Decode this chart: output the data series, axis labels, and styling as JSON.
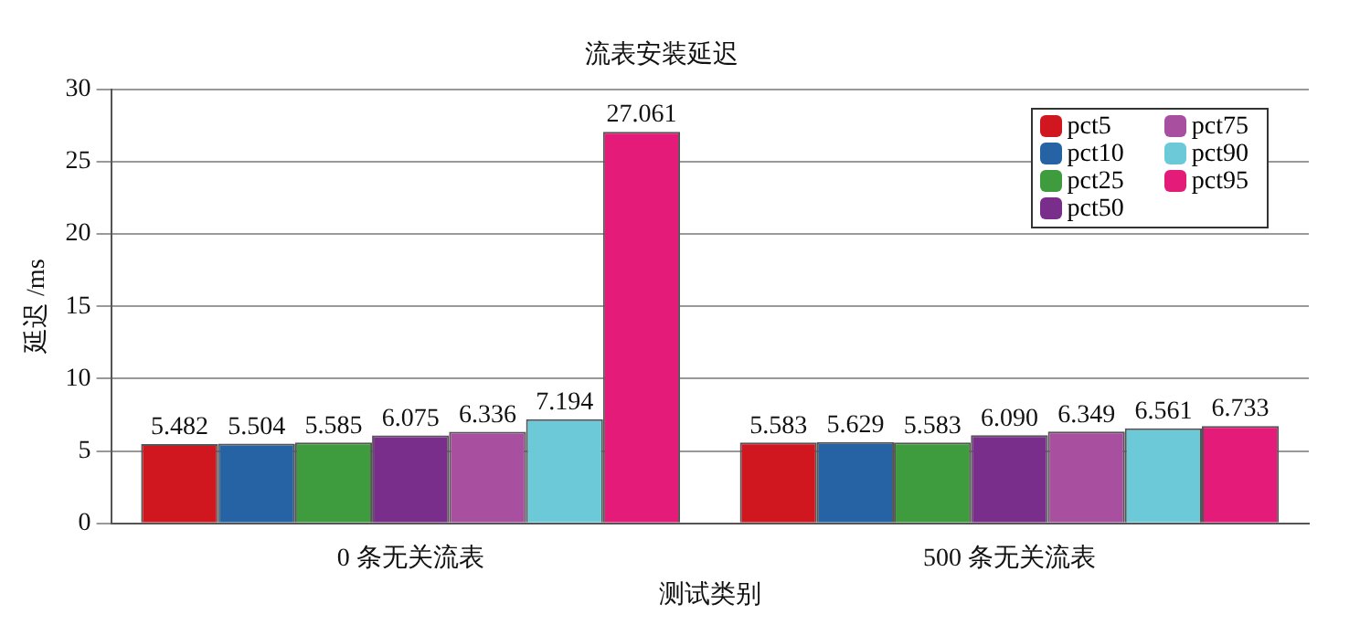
{
  "chart_data": {
    "type": "bar",
    "title": "流表安装延迟",
    "xlabel": "测试类别",
    "ylabel": "延迟 /ms",
    "categories": [
      "0 条无关流表",
      "500 条无关流表"
    ],
    "series": [
      {
        "name": "pct5",
        "color": "#d0161f",
        "values": [
          5.482,
          5.583
        ],
        "value_labels": [
          "5.482",
          "5.583"
        ]
      },
      {
        "name": "pct10",
        "color": "#2563a4",
        "values": [
          5.504,
          5.629
        ],
        "value_labels": [
          "5.504",
          "5.629"
        ]
      },
      {
        "name": "pct25",
        "color": "#3e9c3e",
        "values": [
          5.585,
          5.583
        ],
        "value_labels": [
          "5.585",
          "5.583"
        ]
      },
      {
        "name": "pct50",
        "color": "#7a2e8c",
        "values": [
          6.075,
          6.09
        ],
        "value_labels": [
          "6.075",
          "6.090"
        ]
      },
      {
        "name": "pct75",
        "color": "#a84fa0",
        "values": [
          6.336,
          6.349
        ],
        "value_labels": [
          "6.336",
          "6.349"
        ]
      },
      {
        "name": "pct90",
        "color": "#6ccad8",
        "values": [
          7.194,
          6.561
        ],
        "value_labels": [
          "7.194",
          "6.561"
        ]
      },
      {
        "name": "pct95",
        "color": "#e41b78",
        "values": [
          27.061,
          6.733
        ],
        "value_labels": [
          "27.061",
          "6.733"
        ]
      }
    ],
    "ylim": [
      0,
      30
    ],
    "yticks": [
      0,
      5,
      10,
      15,
      20,
      25,
      30
    ],
    "grid": "y",
    "legend": "top right"
  }
}
